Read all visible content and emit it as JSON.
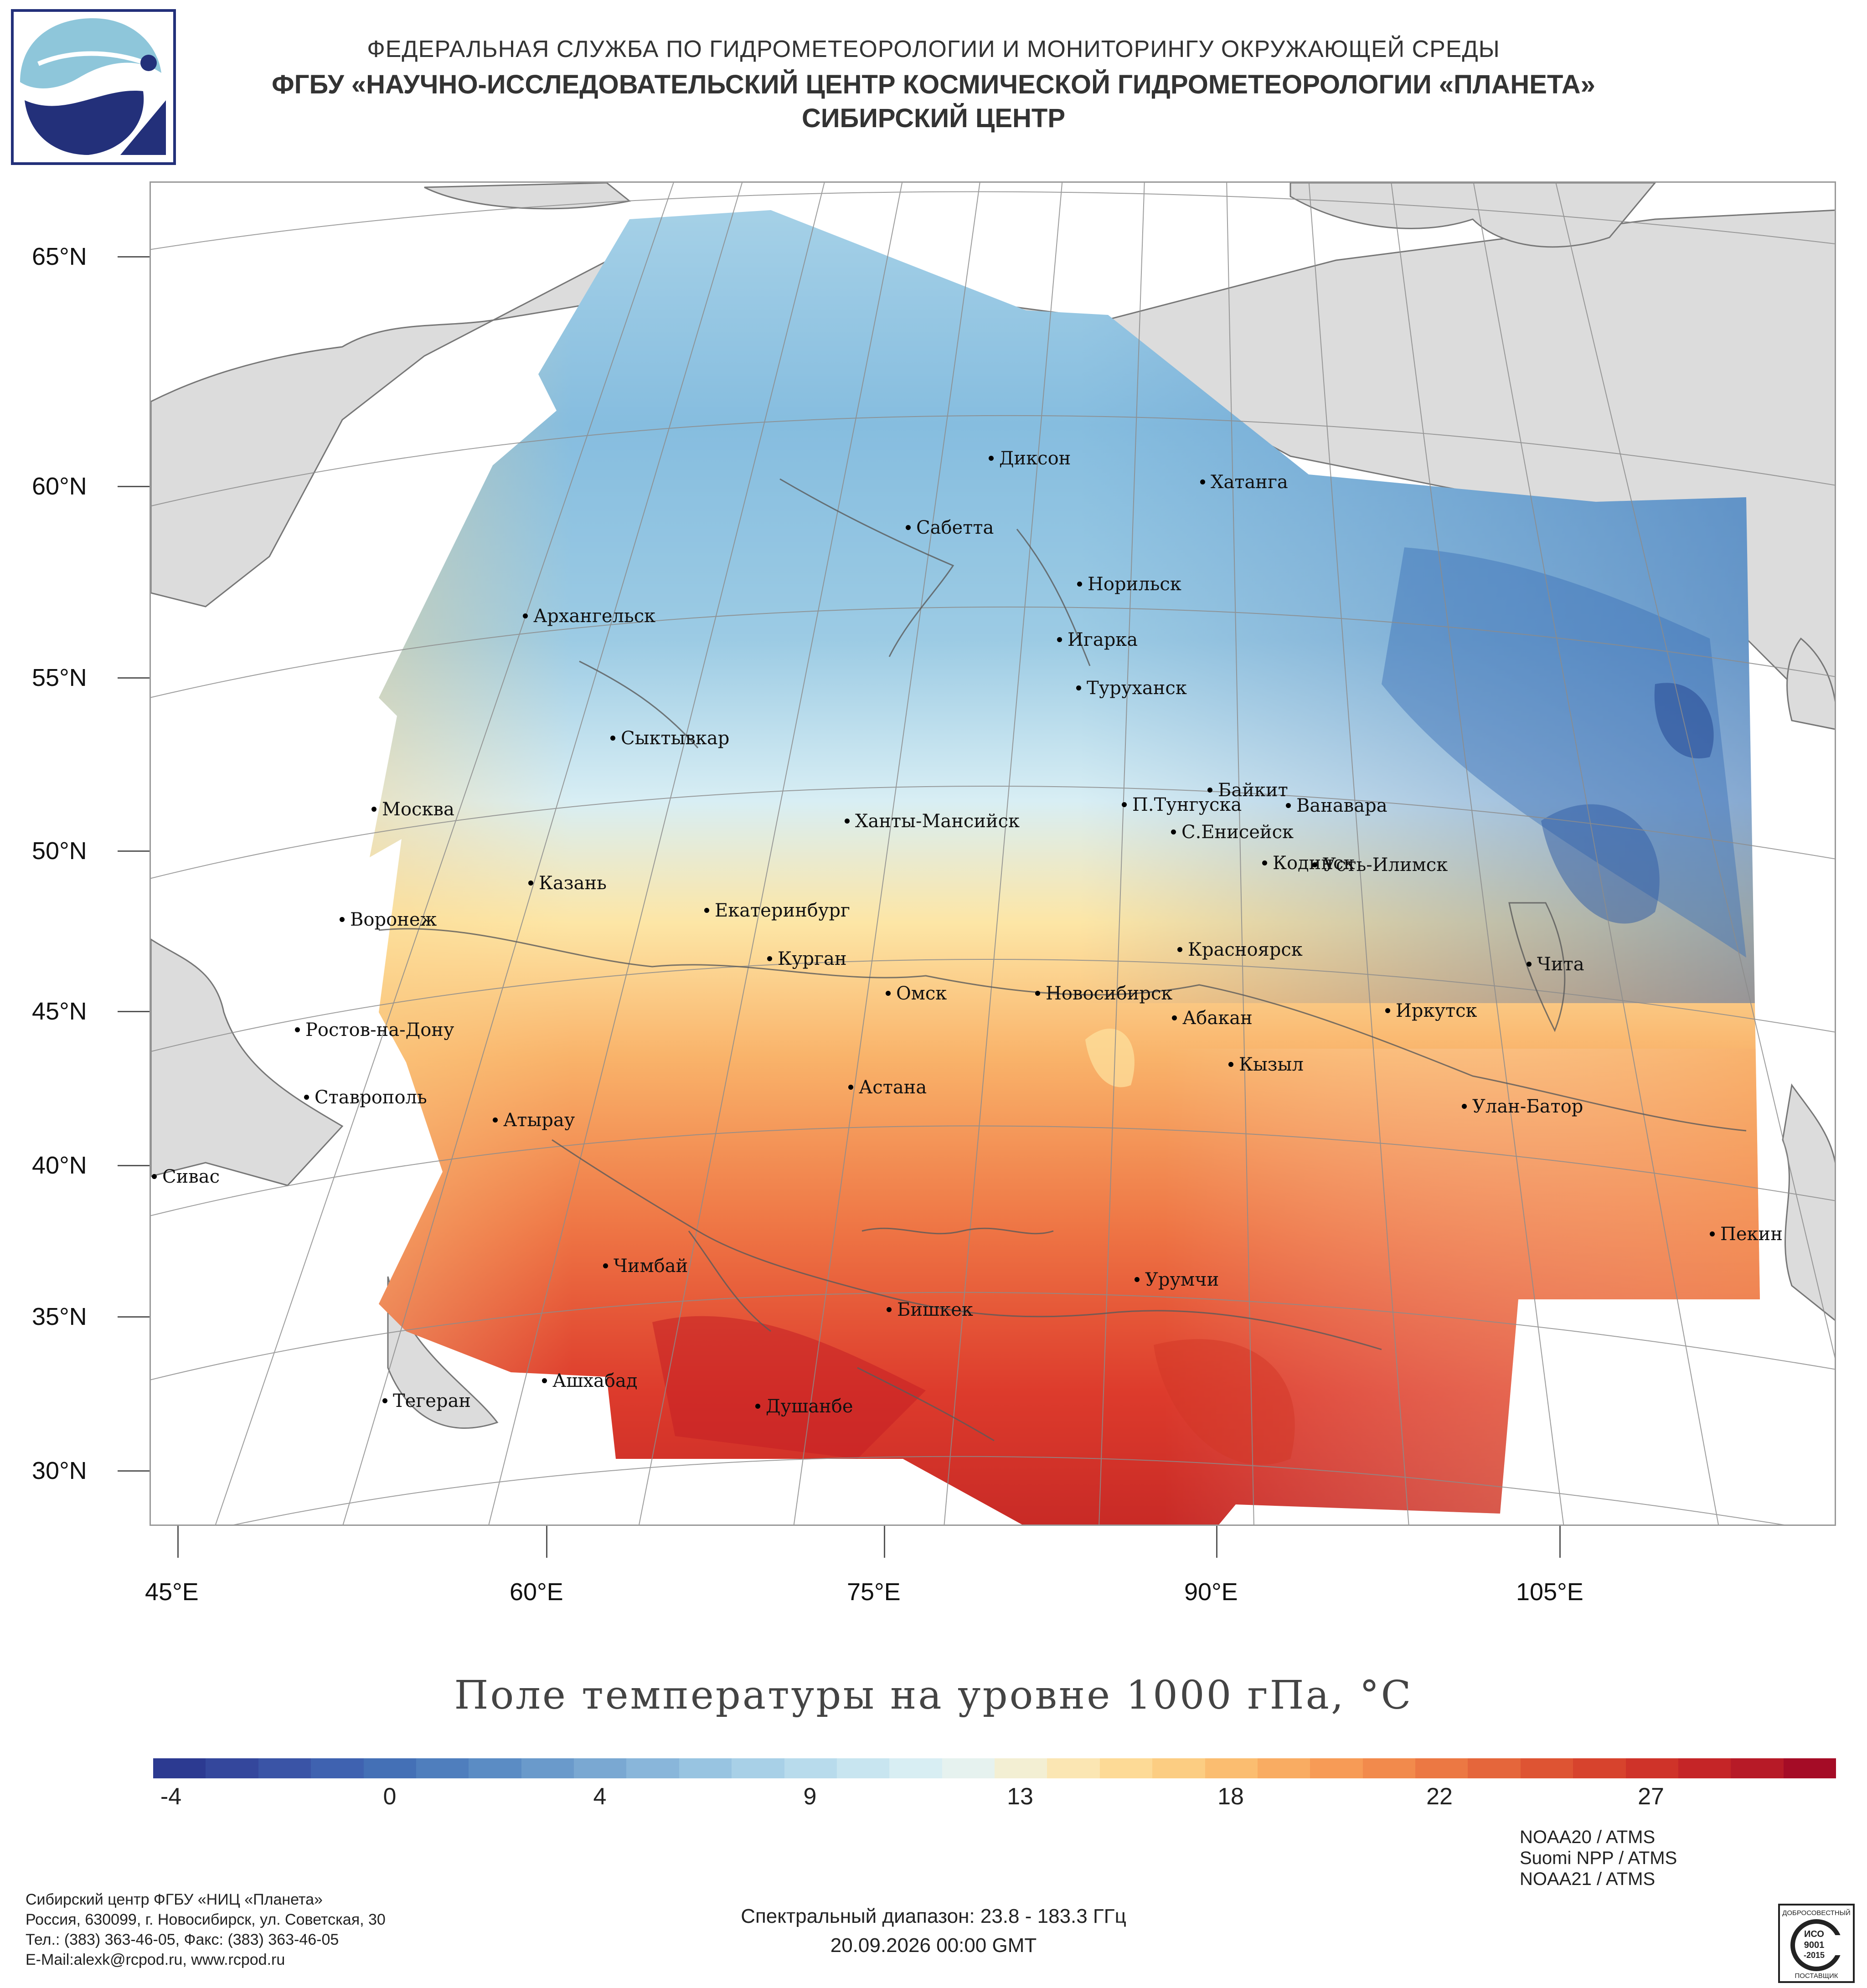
{
  "header": {
    "line1": "ФЕДЕРАЛЬНАЯ СЛУЖБА ПО ГИДРОМЕТЕОРОЛОГИИ И МОНИТОРИНГУ ОКРУЖАЮЩЕЙ СРЕДЫ",
    "line2": "ФГБУ «НАУЧНО-ИССЛЕДОВАТЕЛЬСКИЙ ЦЕНТР КОСМИЧЕСКОЙ ГИДРОМЕТЕОРОЛОГИИ «ПЛАНЕТА»",
    "line3": "СИБИРСКИЙ ЦЕНТР"
  },
  "map": {
    "lat_labels": [
      "65°N",
      "60°N",
      "55°N",
      "50°N",
      "45°N",
      "40°N",
      "35°N",
      "30°N"
    ],
    "lon_labels": [
      "45°E",
      "60°E",
      "75°E",
      "90°E",
      "105°E"
    ],
    "cities": [
      "Диксон",
      "Хатанга",
      "Сабетта",
      "Норильск",
      "Архангельск",
      "Игарка",
      "Туруханск",
      "Сыктывкар",
      "Байкит",
      "Москва",
      "П.Тунгуска",
      "Ванавара",
      "Ханты-Мансийск",
      "С.Енисейск",
      "Кодинск",
      "Усть-Илимск",
      "Казань",
      "Екатеринбург",
      "Воронеж",
      "Красноярск",
      "Курган",
      "Чита",
      "Омск",
      "Новосибирск",
      "Иркутск",
      "Абакан",
      "Ростов-на-Дону",
      "Кызыл",
      "Ставрополь",
      "Астана",
      "Улан-Батор",
      "Атырау",
      "Сивас",
      "Пекин",
      "Чимбай",
      "Урумчи",
      "Бишкек",
      "Ашхабад",
      "Тегеран",
      "Душанбе"
    ],
    "colors": {
      "land": "#dcdcdc",
      "sea": "#ffffff",
      "grid": "#8c8c8c",
      "border": "#555555"
    }
  },
  "legend": {
    "title": "Поле температуры на уровне 1000 гПа, °C",
    "ticks": [
      "-4",
      "0",
      "4",
      "9",
      "13",
      "18",
      "22",
      "27"
    ],
    "range": [
      -6,
      31
    ],
    "colors": [
      "#2c3a91",
      "#3f6fb6",
      "#7eb3d8",
      "#d6ecf3",
      "#fde3a0",
      "#f9a25a",
      "#e3452f",
      "#a50c26"
    ]
  },
  "footer": {
    "org_lines": [
      "Сибирский центр ФГБУ «НИЦ «Планета»",
      "Россия, 630099, г. Новосибирск, ул. Советская, 30",
      "Тел.: (383) 363-46-05, Факс: (383) 363-46-05",
      "E-Mail:alexk@rcpod.ru, www.rcpod.ru"
    ],
    "spectral": "Спектральный диапазон: 23.8 - 183.3 ГГц",
    "datetime": "20.09.2026 00:00 GMT",
    "instruments": [
      "NOAA20 / ATMS",
      "Suomi NPP / ATMS",
      "NOAA21 / ATMS"
    ],
    "stamp": {
      "top": "ДОБРОСОВЕСТНЫЙ",
      "mid1": "ИСО",
      "mid2": "9001",
      "mid3": "-2015",
      "bottom": "ПОСТАВЩИК"
    }
  }
}
